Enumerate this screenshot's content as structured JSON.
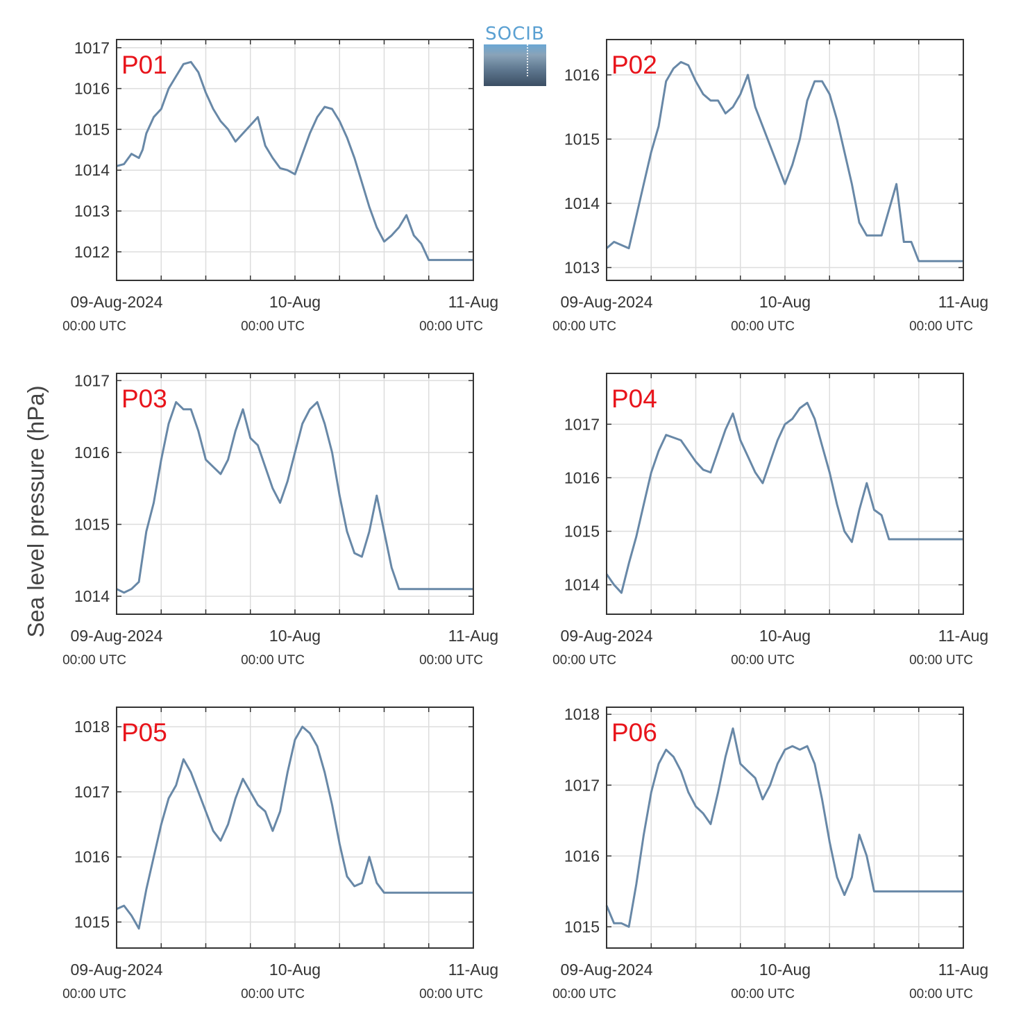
{
  "figure": {
    "ylabel": "Sea level pressure (hPa)",
    "logo_text": "SOCIB",
    "line_color": "#6888a7",
    "label_color": "#e8141b",
    "x_tick_labels": [
      "09-Aug-2024",
      "10-Aug",
      "11-Aug"
    ],
    "x_tick_sublabels": [
      "00:00 UTC",
      "00:00 UTC",
      "00:00 UTC"
    ]
  },
  "chart_data": [
    {
      "type": "line",
      "title": "P01",
      "x_unit": "hours since 09-Aug-2024 00:00 UTC",
      "x_range": [
        0,
        48
      ],
      "ylim": [
        1011.3,
        1017.2
      ],
      "yticks": [
        1012,
        1013,
        1014,
        1015,
        1016,
        1017
      ],
      "x": [
        0,
        1,
        2,
        3,
        3.5,
        4,
        5,
        6,
        7,
        8,
        9,
        10,
        11,
        12,
        13,
        14,
        15,
        16,
        17,
        18,
        19,
        20,
        21,
        22,
        23,
        24,
        25,
        26,
        27,
        28,
        29,
        30,
        31,
        32,
        33,
        34,
        35,
        36,
        37,
        38,
        39,
        40,
        41,
        42,
        43,
        44,
        45,
        45.5,
        46,
        47,
        48
      ],
      "values": [
        1014.1,
        1014.15,
        1014.4,
        1014.3,
        1014.5,
        1014.9,
        1015.3,
        1015.5,
        1016.0,
        1016.3,
        1016.6,
        1016.65,
        1016.4,
        1015.9,
        1015.5,
        1015.2,
        1015.0,
        1014.7,
        1014.9,
        1015.1,
        1015.3,
        1014.6,
        1014.3,
        1014.05,
        1014.0,
        1013.9,
        1014.4,
        1014.9,
        1015.3,
        1015.55,
        1015.5,
        1015.2,
        1014.8,
        1014.3,
        1013.7,
        1013.1,
        1012.6,
        1012.25,
        1012.4,
        1012.6,
        1012.9,
        1012.4,
        1012.2,
        1011.8,
        1011.8,
        1011.8,
        1011.8,
        1011.8,
        1011.8,
        1011.8,
        1011.8
      ]
    },
    {
      "type": "line",
      "title": "P02",
      "x_unit": "hours since 09-Aug-2024 00:00 UTC",
      "x_range": [
        0,
        48
      ],
      "ylim": [
        1012.8,
        1016.55
      ],
      "yticks": [
        1013,
        1014,
        1015,
        1016
      ],
      "x": [
        0,
        1,
        2,
        3,
        4,
        5,
        6,
        7,
        8,
        9,
        10,
        11,
        12,
        13,
        14,
        15,
        16,
        17,
        18,
        19,
        20,
        21,
        22,
        23,
        24,
        25,
        26,
        27,
        28,
        29,
        30,
        31,
        32,
        33,
        34,
        35,
        36,
        37,
        38,
        39,
        40,
        41,
        42,
        43,
        44,
        45,
        46,
        47,
        48
      ],
      "values": [
        1013.3,
        1013.4,
        1013.35,
        1013.3,
        1013.8,
        1014.3,
        1014.8,
        1015.2,
        1015.9,
        1016.1,
        1016.2,
        1016.15,
        1015.9,
        1015.7,
        1015.6,
        1015.6,
        1015.4,
        1015.5,
        1015.7,
        1016.0,
        1015.5,
        1015.2,
        1014.9,
        1014.6,
        1014.3,
        1014.6,
        1015.0,
        1015.6,
        1015.9,
        1015.9,
        1015.7,
        1015.3,
        1014.8,
        1014.3,
        1013.7,
        1013.5,
        1013.5,
        1013.5,
        1013.9,
        1014.3,
        1013.4,
        1013.4,
        1013.1,
        1013.1,
        1013.1,
        1013.1,
        1013.1,
        1013.1,
        1013.1
      ]
    },
    {
      "type": "line",
      "title": "P03",
      "x_unit": "hours since 09-Aug-2024 00:00 UTC",
      "x_range": [
        0,
        48
      ],
      "ylim": [
        1013.75,
        1017.1
      ],
      "yticks": [
        1014,
        1015,
        1016,
        1017
      ],
      "x": [
        0,
        1,
        2,
        3,
        4,
        5,
        6,
        7,
        8,
        9,
        10,
        11,
        12,
        13,
        14,
        15,
        16,
        17,
        18,
        19,
        20,
        21,
        22,
        23,
        24,
        25,
        26,
        27,
        28,
        29,
        30,
        31,
        32,
        33,
        34,
        35,
        36,
        37,
        38,
        39,
        40,
        41,
        42,
        43,
        44,
        45,
        46,
        47,
        48
      ],
      "values": [
        1014.1,
        1014.05,
        1014.1,
        1014.2,
        1014.9,
        1015.3,
        1015.9,
        1016.4,
        1016.7,
        1016.6,
        1016.6,
        1016.3,
        1015.9,
        1015.8,
        1015.7,
        1015.9,
        1016.3,
        1016.6,
        1016.2,
        1016.1,
        1015.8,
        1015.5,
        1015.3,
        1015.6,
        1016.0,
        1016.4,
        1016.6,
        1016.7,
        1016.4,
        1016.0,
        1015.4,
        1014.9,
        1014.6,
        1014.55,
        1014.9,
        1015.4,
        1014.9,
        1014.4,
        1014.1,
        1014.1,
        1014.1,
        1014.1,
        1014.1,
        1014.1,
        1014.1,
        1014.1,
        1014.1,
        1014.1,
        1014.1
      ]
    },
    {
      "type": "line",
      "title": "P04",
      "x_unit": "hours since 09-Aug-2024 00:00 UTC",
      "x_range": [
        0,
        48
      ],
      "ylim": [
        1013.45,
        1017.95
      ],
      "yticks": [
        1014,
        1015,
        1016,
        1017
      ],
      "x": [
        0,
        1,
        2,
        3,
        4,
        5,
        6,
        7,
        8,
        9,
        10,
        11,
        12,
        13,
        14,
        15,
        16,
        17,
        18,
        19,
        20,
        21,
        22,
        23,
        24,
        25,
        26,
        27,
        28,
        29,
        30,
        31,
        32,
        33,
        34,
        35,
        36,
        37,
        38,
        39,
        40,
        41,
        42,
        43,
        44,
        45,
        46,
        47,
        48
      ],
      "values": [
        1014.2,
        1014.0,
        1013.85,
        1014.4,
        1014.9,
        1015.5,
        1016.1,
        1016.5,
        1016.8,
        1016.75,
        1016.7,
        1016.5,
        1016.3,
        1016.15,
        1016.1,
        1016.5,
        1016.9,
        1017.2,
        1016.7,
        1016.4,
        1016.1,
        1015.9,
        1016.3,
        1016.7,
        1017.0,
        1017.1,
        1017.3,
        1017.4,
        1017.1,
        1016.6,
        1016.1,
        1015.5,
        1015.0,
        1014.8,
        1015.4,
        1015.9,
        1015.4,
        1015.3,
        1014.85,
        1014.85,
        1014.85,
        1014.85,
        1014.85,
        1014.85,
        1014.85,
        1014.85,
        1014.85,
        1014.85,
        1014.85
      ]
    },
    {
      "type": "line",
      "title": "P05",
      "x_unit": "hours since 09-Aug-2024 00:00 UTC",
      "x_range": [
        0,
        48
      ],
      "ylim": [
        1014.6,
        1018.3
      ],
      "yticks": [
        1015,
        1016,
        1017,
        1018
      ],
      "x": [
        0,
        1,
        2,
        3,
        4,
        5,
        6,
        7,
        8,
        9,
        10,
        11,
        12,
        13,
        14,
        15,
        16,
        17,
        18,
        19,
        20,
        21,
        22,
        23,
        24,
        25,
        26,
        27,
        28,
        29,
        30,
        31,
        32,
        33,
        34,
        35,
        36,
        37,
        38,
        39,
        40,
        41,
        42,
        43,
        44,
        45,
        46,
        47,
        48
      ],
      "values": [
        1015.2,
        1015.25,
        1015.1,
        1014.9,
        1015.5,
        1016.0,
        1016.5,
        1016.9,
        1017.1,
        1017.5,
        1017.3,
        1017.0,
        1016.7,
        1016.4,
        1016.25,
        1016.5,
        1016.9,
        1017.2,
        1017.0,
        1016.8,
        1016.7,
        1016.4,
        1016.7,
        1017.3,
        1017.8,
        1018.0,
        1017.9,
        1017.7,
        1017.3,
        1016.8,
        1016.2,
        1015.7,
        1015.55,
        1015.6,
        1016.0,
        1015.6,
        1015.45,
        1015.45,
        1015.45,
        1015.45,
        1015.45,
        1015.45,
        1015.45,
        1015.45,
        1015.45,
        1015.45,
        1015.45,
        1015.45,
        1015.45
      ]
    },
    {
      "type": "line",
      "title": "P06",
      "x_unit": "hours since 09-Aug-2024 00:00 UTC",
      "x_range": [
        0,
        48
      ],
      "ylim": [
        1014.7,
        1018.1
      ],
      "yticks": [
        1015,
        1016,
        1017,
        1018
      ],
      "x": [
        0,
        1,
        2,
        3,
        4,
        5,
        6,
        7,
        8,
        9,
        10,
        11,
        12,
        13,
        14,
        15,
        16,
        17,
        18,
        19,
        20,
        21,
        22,
        23,
        24,
        25,
        26,
        27,
        28,
        29,
        30,
        31,
        32,
        33,
        34,
        35,
        36,
        37,
        38,
        39,
        40,
        41,
        42,
        43,
        44,
        45,
        46,
        47,
        48
      ],
      "values": [
        1015.3,
        1015.05,
        1015.05,
        1015.0,
        1015.6,
        1016.3,
        1016.9,
        1017.3,
        1017.5,
        1017.4,
        1017.2,
        1016.9,
        1016.7,
        1016.6,
        1016.45,
        1016.9,
        1017.4,
        1017.8,
        1017.3,
        1017.2,
        1017.1,
        1016.8,
        1017.0,
        1017.3,
        1017.5,
        1017.55,
        1017.5,
        1017.55,
        1017.3,
        1016.8,
        1016.2,
        1015.7,
        1015.45,
        1015.7,
        1016.3,
        1016.0,
        1015.5,
        1015.5,
        1015.5,
        1015.5,
        1015.5,
        1015.5,
        1015.5,
        1015.5,
        1015.5,
        1015.5,
        1015.5,
        1015.5,
        1015.5
      ]
    }
  ]
}
